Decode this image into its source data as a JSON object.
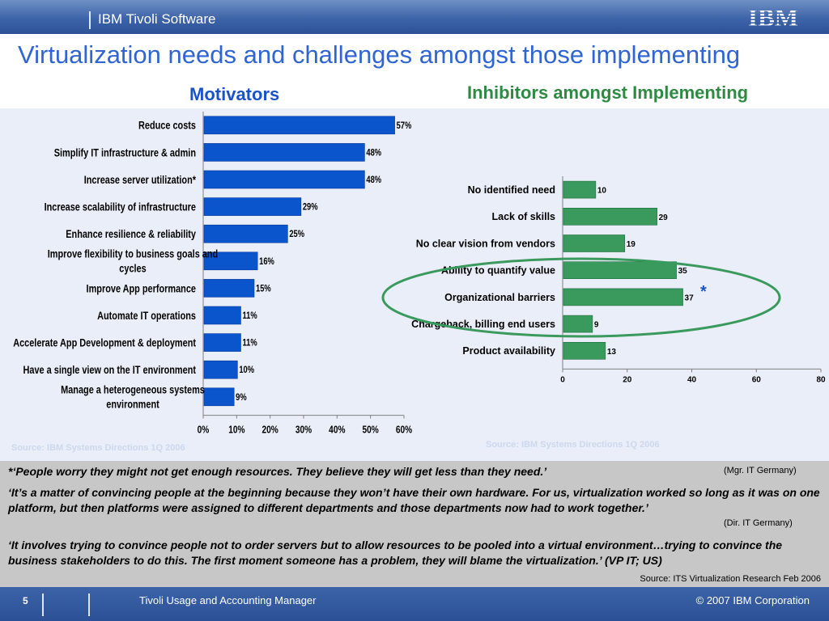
{
  "header": {
    "brand": "IBM Tivoli Software",
    "logo_text": "IBM"
  },
  "title": "Virtualization needs and challenges amongst those implementing",
  "charts": {
    "motivators_heading": "Motivators",
    "inhibitors_heading": "Inhibitors amongst Implementing",
    "source_left": "Source: IBM Systems Directions 1Q 2006",
    "source_right": "Source: IBM Systems Directions 1Q 2006",
    "asterisk": "*"
  },
  "chart_data": [
    {
      "type": "bar",
      "orientation": "horizontal",
      "title": "Motivators",
      "categories": [
        "Reduce costs",
        "Simplify IT infrastructure & admin",
        "Increase server utilization*",
        "Increase scalability of infrastructure",
        "Enhance resilience & reliability",
        "Improve flexibility to business goals and cycles",
        "Improve App performance",
        "Automate IT operations",
        "Accelerate App Development & deployment",
        "Have a single view on the IT environment",
        "Manage a heterogeneous systems environment"
      ],
      "values": [
        57,
        48,
        48,
        29,
        25,
        16,
        15,
        11,
        11,
        10,
        9
      ],
      "value_labels": [
        "57%",
        "48%",
        "48%",
        "29%",
        "25%",
        "16%",
        "15%",
        "11%",
        "11%",
        "10%",
        "9%"
      ],
      "xlim": [
        0,
        60
      ],
      "ticks": [
        0,
        10,
        20,
        30,
        40,
        50,
        60
      ],
      "tick_labels": [
        "0%",
        "10%",
        "20%",
        "30%",
        "40%",
        "50%",
        "60%"
      ],
      "color": "#0a55cc",
      "grid": false
    },
    {
      "type": "bar",
      "orientation": "horizontal",
      "title": "Inhibitors amongst Implementing",
      "categories": [
        "No identified need",
        "Lack of skills",
        "No clear vision from vendors",
        "Ability to quantify value",
        "Organizational barriers",
        "Chargeback, billing end users",
        "Product availability"
      ],
      "values": [
        10,
        29,
        19,
        35,
        37,
        9,
        13
      ],
      "value_labels": [
        "10",
        "29",
        "19",
        "35",
        "37",
        "9",
        "13"
      ],
      "xlim": [
        0,
        80
      ],
      "ticks": [
        0,
        20,
        40,
        60,
        80
      ],
      "tick_labels": [
        "0",
        "20",
        "40",
        "60",
        "80"
      ],
      "color": "#3a9a5d",
      "grid": false,
      "highlight_color": "#3a9a5d"
    }
  ],
  "quotes": {
    "q1": "*‘People worry they might not get enough resources. They believe they will get less than they need.’",
    "a1": "(Mgr. IT Germany)",
    "q2": "‘It’s a matter of convincing people at the beginning because they won’t have their own hardware. For us, virtualization worked so long as it was on one platform, but then platforms were assigned to different departments and those departments now had to work together.’",
    "a2": "(Dir. IT Germany)",
    "q3": "‘It involves trying to convince people not to order servers but to allow resources to be pooled into a virtual environment…trying to convince the business stakeholders to do this. The first moment someone has a problem, they will blame the virtualization.’ (VP IT; US)",
    "source": "Source: ITS Virtualization Research Feb 2006"
  },
  "footer": {
    "page": "5",
    "product": "Tivoli Usage and Accounting Manager",
    "copyright": "© 2007 IBM Corporation"
  }
}
